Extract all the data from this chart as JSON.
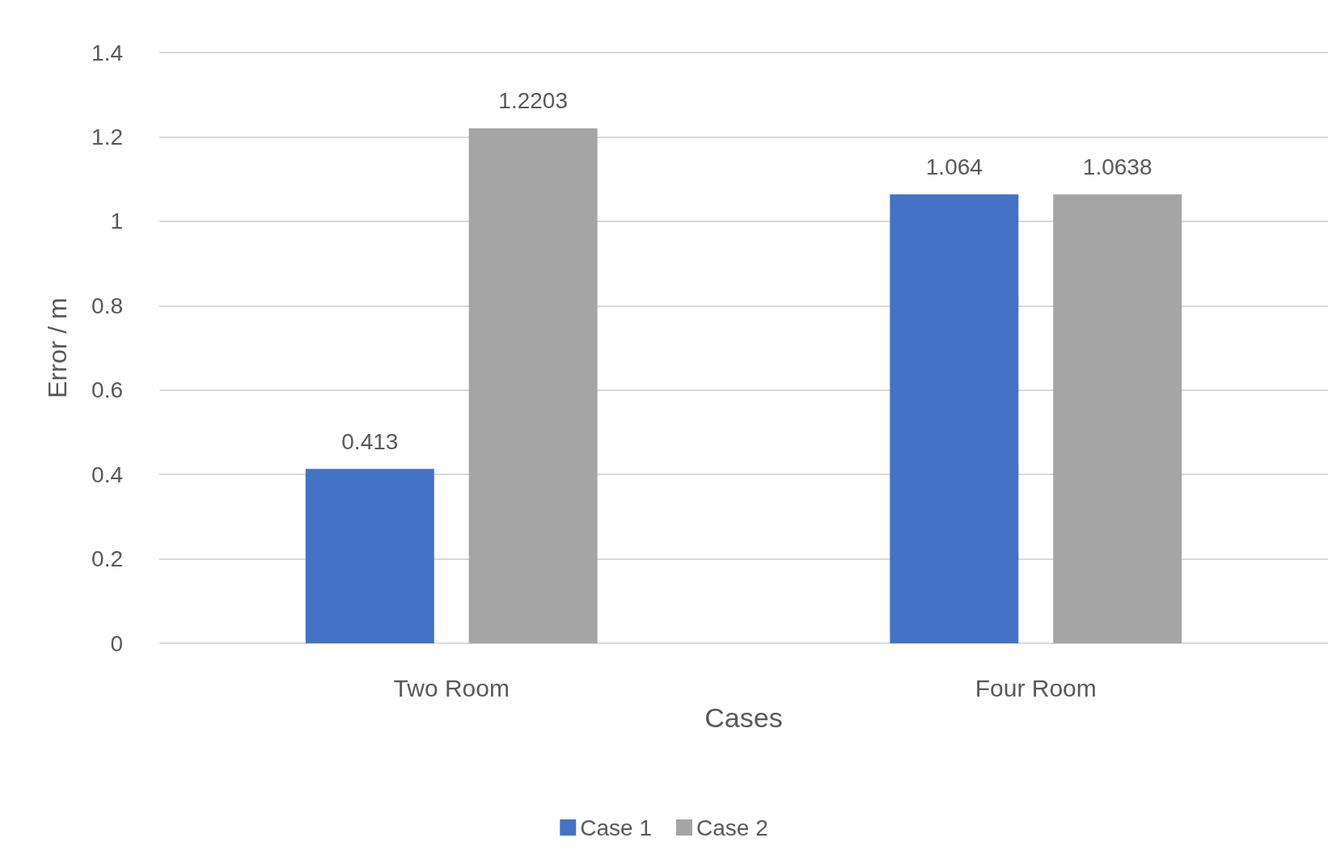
{
  "chart_data": {
    "type": "bar",
    "xlabel": "Cases",
    "ylabel": "Error / m",
    "categories": [
      "Two Room",
      "Four Room"
    ],
    "series": [
      {
        "name": "Case 1",
        "color": "#4472c4",
        "values": [
          0.413,
          1.064
        ]
      },
      {
        "name": "Case 2",
        "color": "#a5a5a5",
        "values": [
          1.2203,
          1.0638
        ]
      }
    ],
    "ylim": [
      0,
      1.4
    ],
    "yticks": [
      0,
      0.2,
      0.4,
      0.6,
      0.8,
      1,
      1.2,
      1.4
    ],
    "grid": "y",
    "legend": "bottom",
    "data_labels": true
  }
}
